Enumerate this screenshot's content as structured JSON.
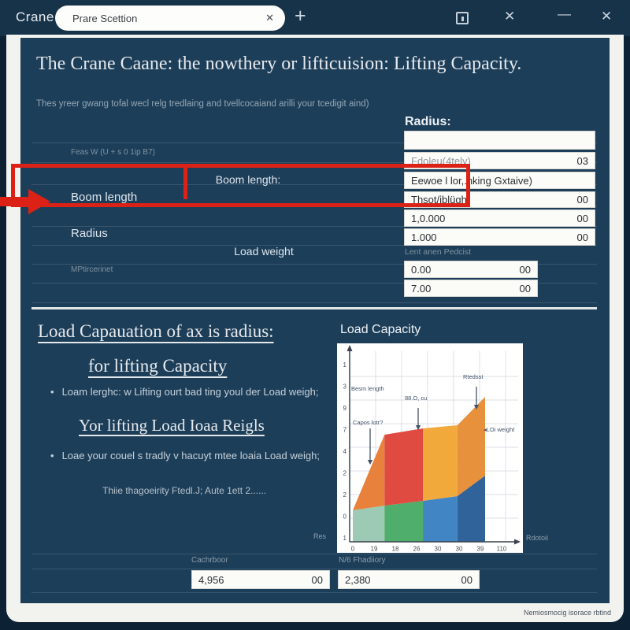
{
  "window": {
    "app_name": "Crane",
    "tab_title": "Prare Scettion",
    "tab_close": "✕",
    "new_tab": "+",
    "close_icon": "✕",
    "minimize_icon": "—"
  },
  "header": {
    "title": "The Crane Caane: the nowthery or lifticuision: Lifting Capacity.",
    "subtitle": "Thes yreer gwang tofal wecl relg tredlaing and tvellcocaiand arilli your tcedigit aind)"
  },
  "form": {
    "radius_heading": "Radius:",
    "hint": "Feas W (U + s 0 1ip B7)",
    "boom_center_label": "Boom length:",
    "boom_label": "Boom length",
    "radius_label": "Radius",
    "load_weight_label": "Load weight",
    "mpt_label": "MPtircerinet",
    "lent_label": "Lent anen Pedcist",
    "inputs": [
      {
        "value": "",
        "suffix": ""
      },
      {
        "value": "Fdoleu(4tely)",
        "suffix": "03"
      },
      {
        "value": "Eewoe l lor,.hking Gxtaive)",
        "suffix": ""
      },
      {
        "value": "Thsot/iblügh",
        "suffix": "00"
      },
      {
        "value": "1,0.000",
        "suffix": "00"
      },
      {
        "value": "1.000",
        "suffix": "00"
      },
      {
        "value": "0.00",
        "suffix": "00"
      },
      {
        "value": "7.00",
        "suffix": "00"
      }
    ]
  },
  "info": {
    "heading_line1": "Load Capauation  of ax is radius:",
    "heading_line2": "for lifting Capacity",
    "bullet1": "Loam lerghc: w Lifting ourt bad ting youl der Load weigh;",
    "heading2": "Yor lifting Load Ioaa Reigls",
    "bullet2": "Loae your couel s tradly v hacuyt mtee loaia Load weigh;",
    "note": "Thiie thagoeirity Ftedl.J; Aute 1ett 2......"
  },
  "bottom": {
    "field1": {
      "label": "Cachrboor",
      "value": "4,956",
      "suffix": "00"
    },
    "field2": {
      "label": "N/6 Fhadiiory",
      "value": "2,380",
      "suffix": "00"
    }
  },
  "status_text": "Nemiosmocig isorace rbtind",
  "chart_data": {
    "type": "area",
    "title": "Load Capacity",
    "x_tick_labels": [
      "0",
      "19",
      "18",
      "26",
      "30",
      "30",
      "39",
      "110"
    ],
    "y_tick_labels": [
      "1",
      "3",
      "9",
      "7",
      "4",
      "2",
      "2",
      "0",
      "1"
    ],
    "axis_left_label": "Res",
    "axis_right_label": "Rdotoii",
    "ylim": [
      0,
      10
    ],
    "grid": true,
    "legend_position": "none",
    "boundaries_x": [
      0,
      0.24,
      0.53,
      0.79,
      1.0
    ],
    "series": [
      {
        "name": "base-band",
        "values": [
          2.0,
          2.3,
          2.6,
          2.9,
          4.2
        ],
        "segment_colors": [
          "#9ccab5",
          "#4fae6b",
          "#4285c4",
          "#2f6399"
        ]
      },
      {
        "name": "upper-band",
        "values": [
          2.0,
          6.8,
          7.2,
          7.4,
          9.2
        ],
        "segment_colors": [
          "#e8813c",
          "#e04b41",
          "#f2a93b",
          "#e8913c"
        ]
      }
    ],
    "annotations": [
      "Besm length",
      "88.O, cu",
      "Rtedsst",
      "Capos lotr?",
      "◂LOi weight"
    ],
    "accent_colors": {
      "red_callout": "#dc2217",
      "panel_bg": "#1d3e59"
    }
  }
}
